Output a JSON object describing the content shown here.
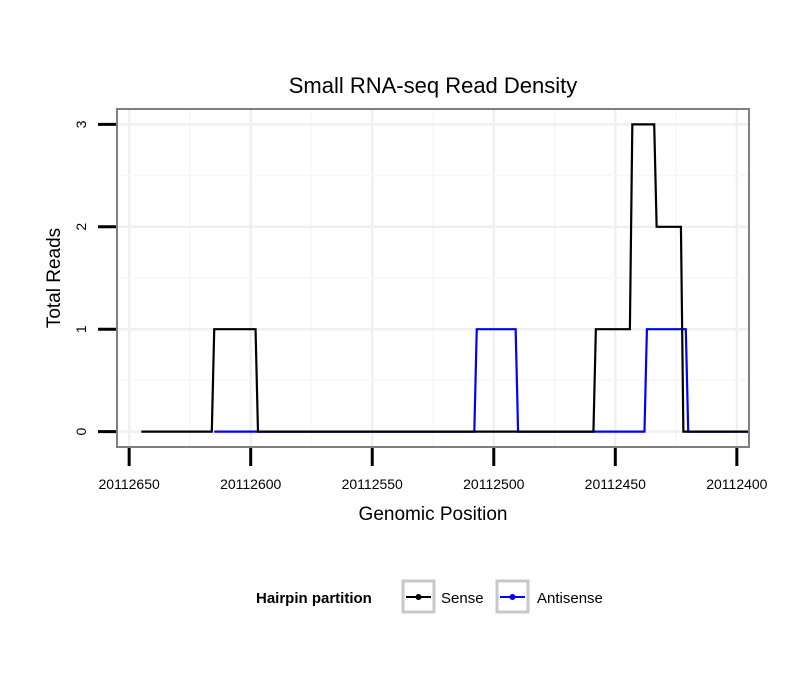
{
  "chart_data": {
    "type": "line",
    "title": "Small RNA-seq Read Density",
    "xlabel": "Genomic Position",
    "ylabel": "Total Reads",
    "xlim": [
      20112655,
      20112395
    ],
    "x_reversed": true,
    "ylim": [
      -0.15,
      3.15
    ],
    "xticks": [
      20112650,
      20112600,
      20112550,
      20112500,
      20112450,
      20112400
    ],
    "xtick_labels": [
      "20112650",
      "20112600",
      "20112550",
      "20112500",
      "20112450",
      "20112400"
    ],
    "yticks": [
      0,
      1,
      2,
      3
    ],
    "ytick_labels": [
      "0",
      "1",
      "2",
      "3"
    ],
    "grid": true,
    "legend": {
      "title": "Hairpin partition",
      "position": "bottom",
      "entries": [
        "Sense",
        "Antisense"
      ]
    },
    "series": [
      {
        "name": "Sense",
        "color": "#000000",
        "points": [
          [
            20112645,
            0
          ],
          [
            20112616,
            0
          ],
          [
            20112615,
            1
          ],
          [
            20112598,
            1
          ],
          [
            20112597,
            0
          ],
          [
            20112509,
            0
          ],
          [
            20112508,
            0
          ],
          [
            20112491,
            0
          ],
          [
            20112490,
            0
          ],
          [
            20112459,
            0
          ],
          [
            20112458,
            1
          ],
          [
            20112444,
            1
          ],
          [
            20112443,
            3
          ],
          [
            20112434,
            3
          ],
          [
            20112433,
            2
          ],
          [
            20112423,
            2
          ],
          [
            20112422,
            0
          ],
          [
            20112420,
            0
          ],
          [
            20112419,
            0
          ],
          [
            20112395,
            0
          ]
        ]
      },
      {
        "name": "Antisense",
        "color": "#0000ff",
        "points": [
          [
            20112615,
            0
          ],
          [
            20112597,
            0
          ],
          [
            20112508,
            0
          ],
          [
            20112507,
            1
          ],
          [
            20112491,
            1
          ],
          [
            20112490,
            0
          ],
          [
            20112459,
            0
          ],
          [
            20112438,
            0
          ],
          [
            20112437,
            1
          ],
          [
            20112421,
            1
          ],
          [
            20112420,
            0
          ],
          [
            20112395,
            0
          ]
        ]
      }
    ]
  }
}
